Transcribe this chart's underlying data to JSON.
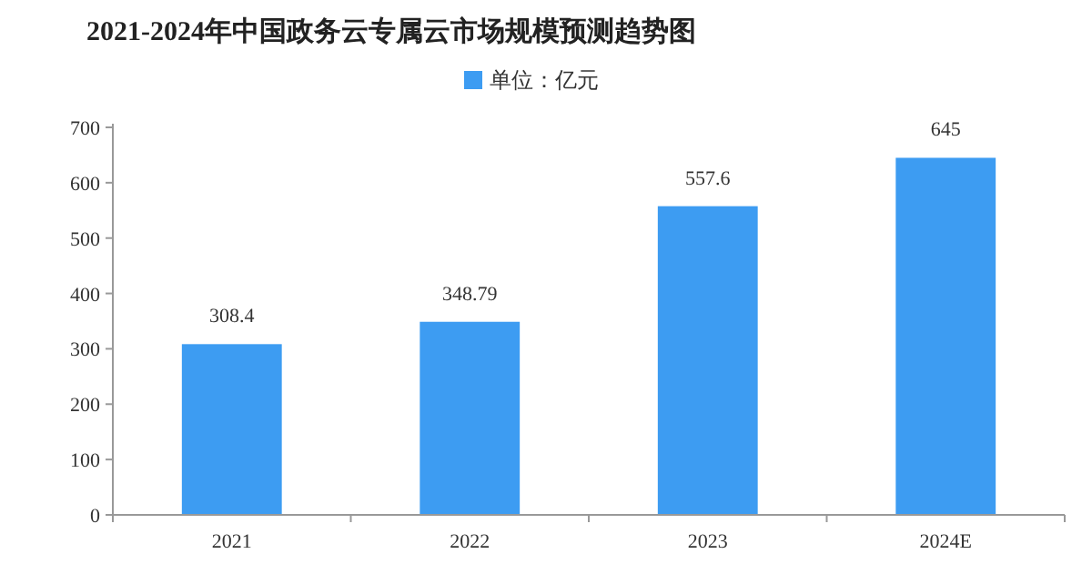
{
  "chart_data": {
    "type": "bar",
    "title": "2021-2024年中国政务云专属云市场规模预测趋势图",
    "categories": [
      "2021",
      "2022",
      "2023",
      "2024E"
    ],
    "series": [
      {
        "name": "单位：亿元",
        "color": "#3d9cf2",
        "values": [
          308.4,
          348.79,
          557.6,
          645
        ]
      }
    ],
    "ylim": [
      0,
      700
    ],
    "yticks": [
      0,
      100,
      200,
      300,
      400,
      500,
      600,
      700
    ],
    "data_labels": true,
    "grid": false,
    "legend": "top"
  }
}
